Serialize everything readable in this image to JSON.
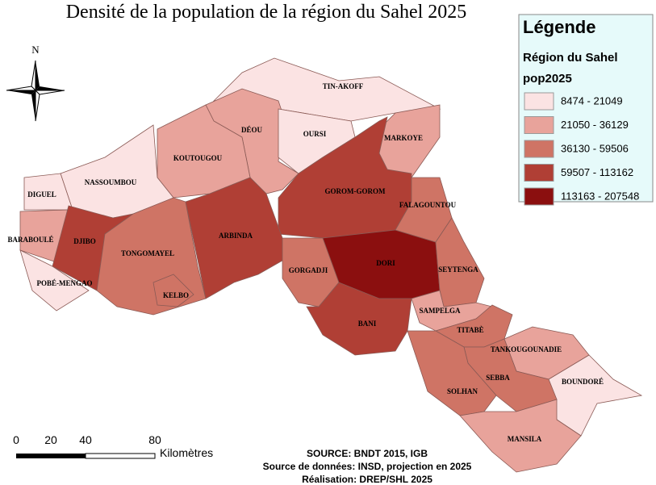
{
  "title": "Densité de la population de la région du Sahel 2025",
  "north": "N",
  "legend": {
    "title": "Légende",
    "layer": "Région du Sahel",
    "field": "pop2025",
    "items": [
      {
        "label": "8474 - 21049",
        "color": "#fbe3e3"
      },
      {
        "label": "21050 - 36129",
        "color": "#e8a39b"
      },
      {
        "label": "36130 - 59506",
        "color": "#cf7465"
      },
      {
        "label": "59507 - 113162",
        "color": "#b03f35"
      },
      {
        "label": "113163 - 207548",
        "color": "#8b0f0f"
      }
    ]
  },
  "communes": [
    "TIN-AKOFF",
    "DÉOU",
    "OURSI",
    "MARKOYE",
    "GOROM-GOROM",
    "KOUTOUGOU",
    "NASSOUMBOU",
    "DIGUEL",
    "BARABOULÉ",
    "DJIBO",
    "POBÉ-MENGAO",
    "TONGOMAYEL",
    "KELBO",
    "ARBINDA",
    "GORGADJI",
    "DORI",
    "FALAGOUNTOU",
    "SEYTENGA",
    "BANI",
    "SAMPELGA",
    "TITABÈ",
    "TANKOUGOUNADIE",
    "BOUNDORÉ",
    "SEBBA",
    "SOLHAN",
    "MANSILA"
  ],
  "scale": {
    "labels": [
      "0",
      "20",
      "40",
      "80"
    ],
    "unit": "Kilomètres"
  },
  "source": [
    "SOURCE: BNDT 2015, IGB",
    "Source de données: INSD, projection en 2025",
    "Réalisation: DREP/SHL 2025"
  ]
}
